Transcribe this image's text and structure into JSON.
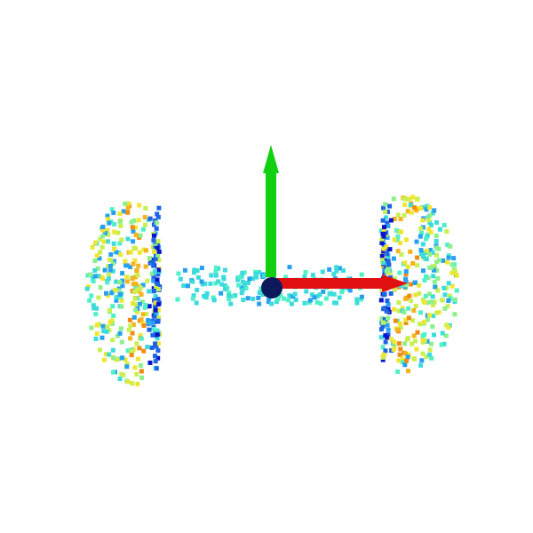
{
  "viewer": {
    "background": "#ffffff",
    "point_cloud": {
      "shape": "dumbbell",
      "colormap": "jet",
      "palette": [
        "#0a14c8",
        "#1e64e6",
        "#28a0f0",
        "#3cdcdc",
        "#50f0c8",
        "#8cf08c",
        "#c8f050",
        "#f0e632",
        "#f5b41e",
        "#f08c14"
      ]
    },
    "axes": {
      "x_axis": {
        "color": "#e01010",
        "direction": "right"
      },
      "y_axis": {
        "color": "#10d010",
        "direction": "up"
      },
      "origin_marker": {
        "color": "#0c1a5c",
        "shape": "sphere"
      }
    }
  }
}
